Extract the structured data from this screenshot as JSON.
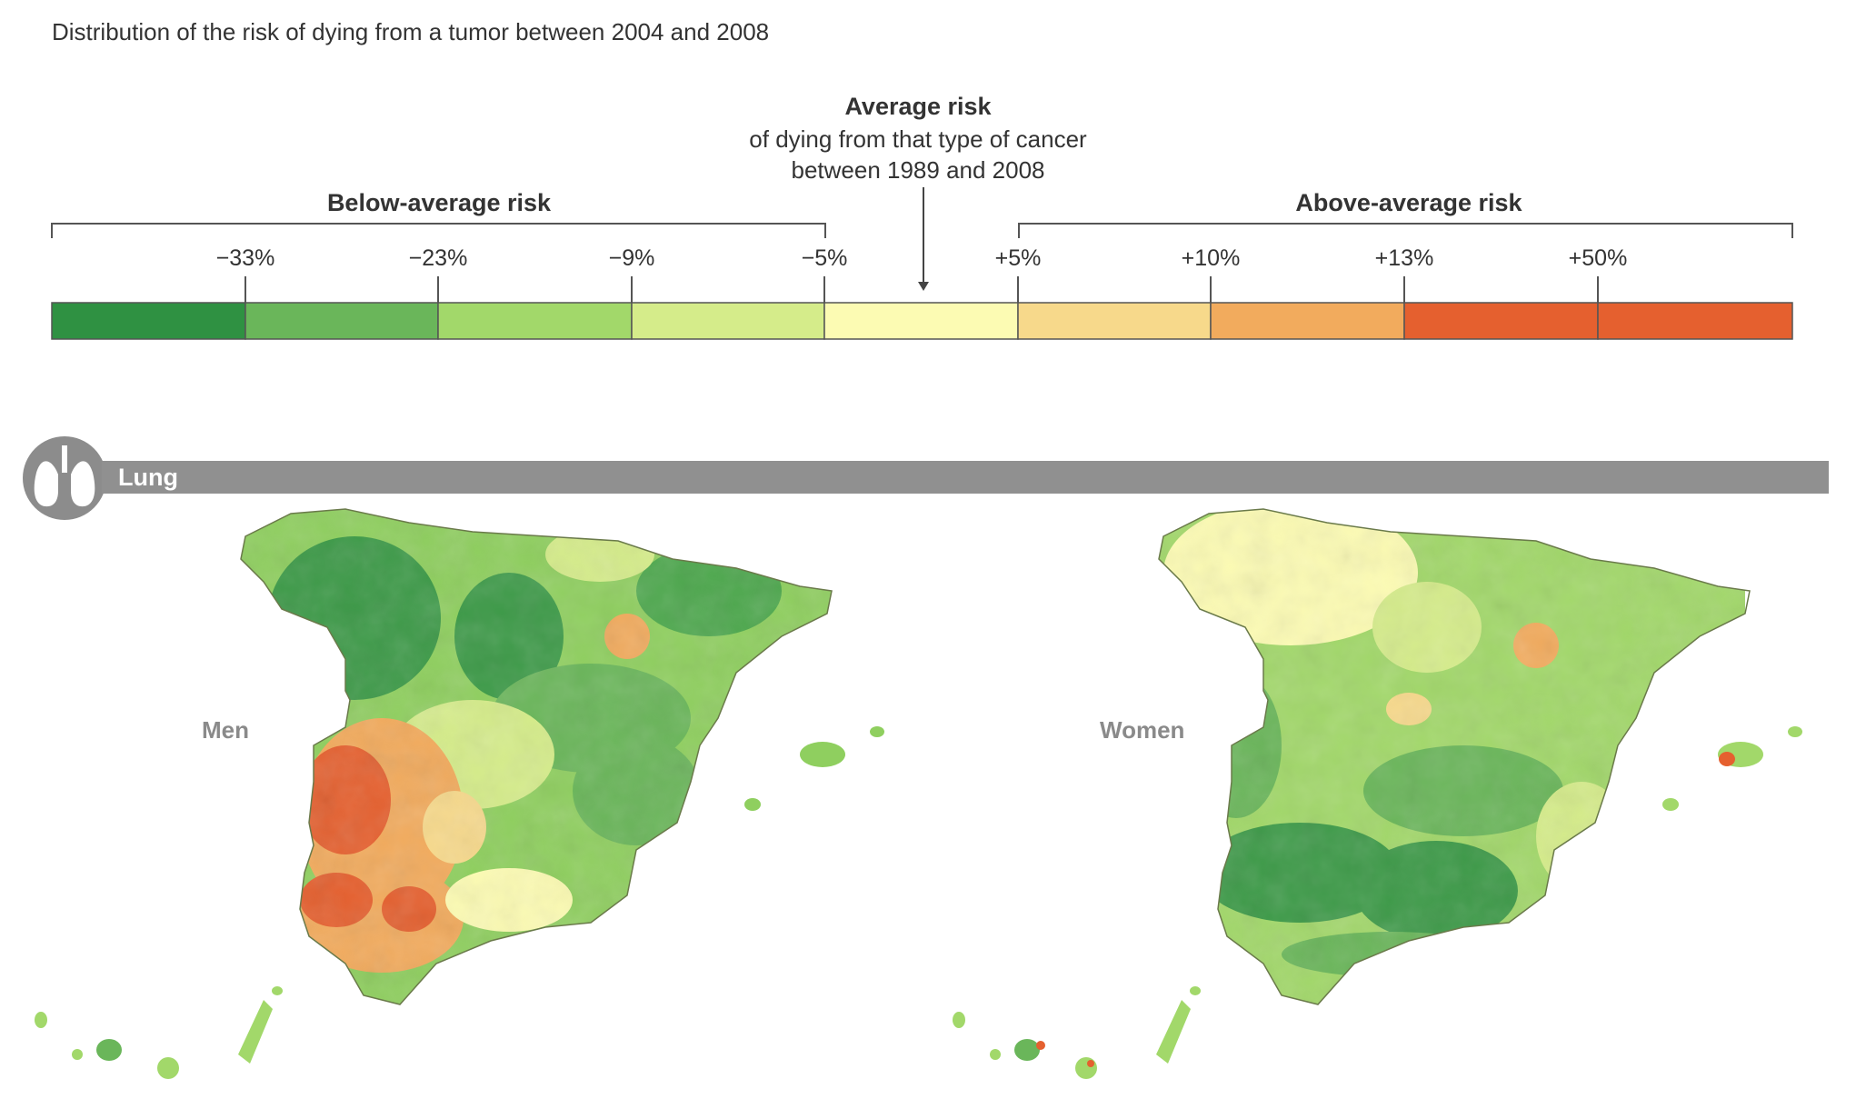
{
  "title": "Distribution of the risk of dying from a tumor between 2004 and 2008",
  "legend": {
    "average_title": "Average risk",
    "average_line1": "of dying from that type of cancer",
    "average_line2": "between 1989 and 2008",
    "below_label": "Below-average risk",
    "above_label": "Above-average risk",
    "ticks": [
      "−33%",
      "−23%",
      "−9%",
      "−5%",
      "+5%",
      "+10%",
      "+13%",
      "+50%"
    ],
    "colors": [
      "#2f9142",
      "#6ab65a",
      "#a2d86a",
      "#d5ec8a",
      "#fcfbb3",
      "#f7d98b",
      "#f2ab5d",
      "#e5602f",
      "#e5602f"
    ]
  },
  "section": {
    "label": "Lung",
    "icon": "lungs-icon"
  },
  "maps": {
    "men_label": "Men",
    "women_label": "Women"
  }
}
